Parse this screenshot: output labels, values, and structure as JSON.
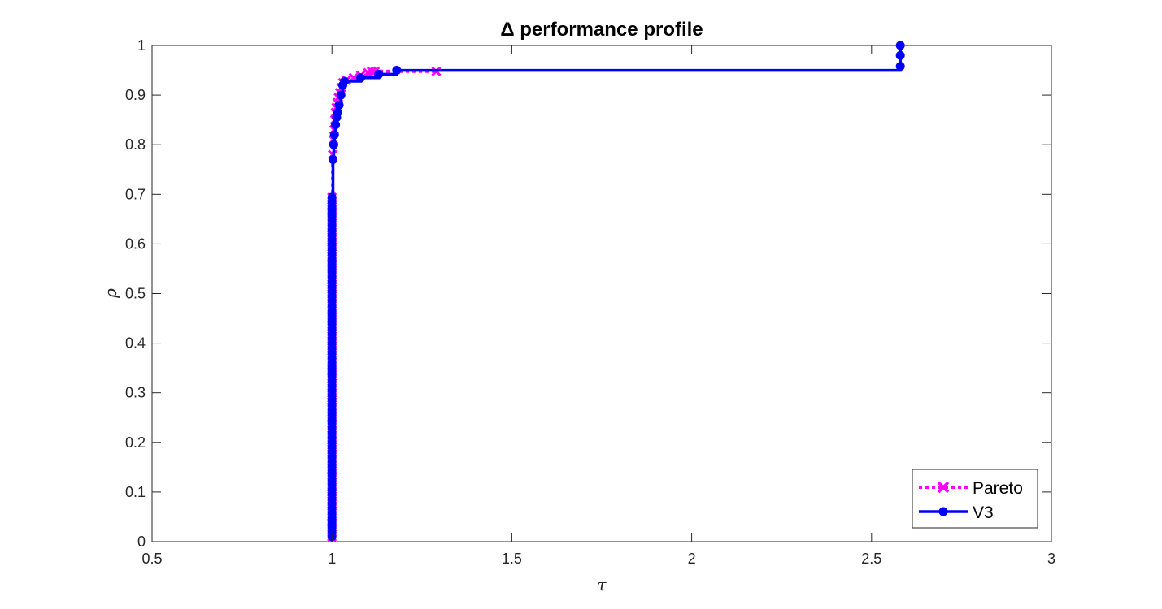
{
  "chart_data": {
    "type": "line",
    "title": "Δ performance profile",
    "xlabel": "τ",
    "ylabel": "ρ",
    "xlim": [
      0.5,
      3
    ],
    "ylim": [
      0,
      1
    ],
    "xticks": [
      "0.5",
      "1",
      "1.5",
      "2",
      "2.5",
      "3"
    ],
    "yticks": [
      "0",
      "0.1",
      "0.2",
      "0.3",
      "0.4",
      "0.5",
      "0.6",
      "0.7",
      "0.8",
      "0.9",
      "1"
    ],
    "grid": false,
    "legend_position": "bottom-right",
    "series": [
      {
        "name": "Pareto",
        "color": "#FF00FF",
        "line_style": "dotted",
        "marker": "x",
        "x": [
          1.0,
          1.0,
          1.0,
          1.002,
          1.004,
          1.006,
          1.008,
          1.01,
          1.012,
          1.015,
          1.018,
          1.022,
          1.026,
          1.03,
          1.04,
          1.06,
          1.08,
          1.1,
          1.11,
          1.12,
          1.29
        ],
        "y": [
          0.01,
          0.3,
          0.7,
          0.78,
          0.81,
          0.83,
          0.85,
          0.865,
          0.875,
          0.885,
          0.895,
          0.905,
          0.915,
          0.925,
          0.93,
          0.935,
          0.94,
          0.945,
          0.948,
          0.948,
          0.948
        ]
      },
      {
        "name": "V3",
        "color": "#0000FF",
        "line_style": "solid",
        "marker": "o",
        "x": [
          1.0,
          1.0,
          1.0,
          1.003,
          1.005,
          1.007,
          1.01,
          1.013,
          1.016,
          1.02,
          1.025,
          1.03,
          1.035,
          1.08,
          1.13,
          1.18,
          2.58,
          2.58,
          2.58
        ],
        "y": [
          0.01,
          0.3,
          0.7,
          0.77,
          0.8,
          0.82,
          0.84,
          0.855,
          0.865,
          0.88,
          0.9,
          0.92,
          0.928,
          0.935,
          0.942,
          0.95,
          0.958,
          0.98,
          1.0
        ]
      }
    ]
  }
}
